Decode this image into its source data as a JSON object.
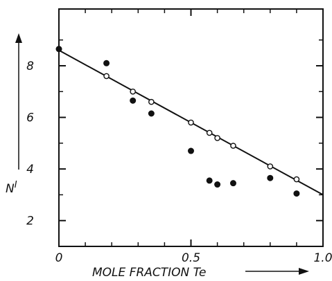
{
  "chart_data": {
    "type": "scatter",
    "xlabel": "MOLE FRACTION Te",
    "ylabel": "N",
    "ylabel_sup": "I",
    "xlim": [
      0,
      1.0
    ],
    "ylim": [
      1,
      10.2
    ],
    "x_ticks": [
      {
        "value": 0,
        "label": "0"
      },
      {
        "value": 0.5,
        "label": "0.5"
      },
      {
        "value": 1.0,
        "label": "1.0"
      }
    ],
    "x_minor_ticks": [
      0.1,
      0.2,
      0.3,
      0.4,
      0.6,
      0.7,
      0.8,
      0.9
    ],
    "y_ticks": [
      {
        "value": 2,
        "label": "2"
      },
      {
        "value": 4,
        "label": "4"
      },
      {
        "value": 6,
        "label": "6"
      },
      {
        "value": 8,
        "label": "8"
      }
    ],
    "y_minor_ticks": [
      3,
      5,
      7,
      9
    ],
    "grid": false,
    "series": [
      {
        "marker": "open-circle",
        "points": [
          {
            "x": 0.0,
            "y": 8.65
          },
          {
            "x": 0.18,
            "y": 7.6
          },
          {
            "x": 0.28,
            "y": 7.0
          },
          {
            "x": 0.35,
            "y": 6.6
          },
          {
            "x": 0.5,
            "y": 5.8
          },
          {
            "x": 0.57,
            "y": 5.4
          },
          {
            "x": 0.6,
            "y": 5.2
          },
          {
            "x": 0.66,
            "y": 4.9
          },
          {
            "x": 0.8,
            "y": 4.1
          },
          {
            "x": 0.9,
            "y": 3.6
          }
        ]
      },
      {
        "marker": "filled-circle",
        "points": [
          {
            "x": 0.0,
            "y": 8.65
          },
          {
            "x": 0.18,
            "y": 8.1
          },
          {
            "x": 0.28,
            "y": 6.65
          },
          {
            "x": 0.35,
            "y": 6.15
          },
          {
            "x": 0.5,
            "y": 4.7
          },
          {
            "x": 0.57,
            "y": 3.55
          },
          {
            "x": 0.6,
            "y": 3.4
          },
          {
            "x": 0.66,
            "y": 3.45
          },
          {
            "x": 0.8,
            "y": 3.65
          },
          {
            "x": 0.9,
            "y": 3.05
          }
        ]
      }
    ],
    "fit_line": {
      "x": [
        0.0,
        1.0
      ],
      "y": [
        8.6,
        3.0
      ]
    },
    "colors": {
      "ink": "#111111",
      "background": "#ffffff"
    }
  }
}
